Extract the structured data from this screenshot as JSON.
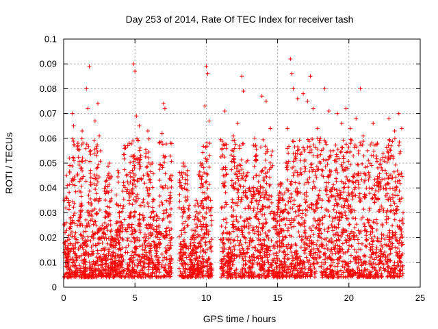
{
  "chart_data": {
    "type": "scatter",
    "title": "Day 253 of 2014, Rate Of TEC Index for receiver tash",
    "xlabel": "GPS time / hours",
    "ylabel": "ROTI / TECUs",
    "xlim": [
      0,
      25
    ],
    "ylim": [
      0,
      0.1
    ],
    "xticks": [
      0,
      5,
      10,
      15,
      20,
      25
    ],
    "xtick_labels": [
      "0",
      "5",
      "10",
      "15",
      "20",
      "25"
    ],
    "yticks": [
      0,
      0.01,
      0.02,
      0.03,
      0.04,
      0.05,
      0.06,
      0.07,
      0.08,
      0.09,
      0.1
    ],
    "ytick_labels": [
      "0",
      "0.01",
      "0.02",
      "0.03",
      "0.04",
      "0.05",
      "0.06",
      "0.07",
      "0.08",
      "0.09",
      "0.1"
    ],
    "grid": true,
    "marker": "plus",
    "color": "#ff0000",
    "data_gaps_hours": [
      [
        7.6,
        8.1
      ],
      [
        10.4,
        11.0
      ]
    ],
    "series": [
      {
        "points": [
          [
            0.05,
            0.035
          ],
          [
            0.1,
            0.022
          ],
          [
            0.2,
            0.045
          ],
          [
            0.3,
            0.015
          ],
          [
            0.4,
            0.052
          ],
          [
            0.5,
            0.028
          ],
          [
            0.6,
            0.07
          ],
          [
            0.7,
            0.065
          ],
          [
            0.8,
            0.041
          ],
          [
            0.9,
            0.012
          ],
          [
            1.0,
            0.058
          ],
          [
            1.2,
            0.048
          ],
          [
            1.3,
            0.063
          ],
          [
            1.5,
            0.019
          ],
          [
            1.6,
            0.08
          ],
          [
            1.7,
            0.072
          ],
          [
            1.8,
            0.089
          ],
          [
            1.9,
            0.055
          ],
          [
            2.0,
            0.031
          ],
          [
            2.2,
            0.067
          ],
          [
            2.4,
            0.074
          ],
          [
            2.5,
            0.061
          ],
          [
            2.7,
            0.025
          ],
          [
            3.0,
            0.043
          ],
          [
            3.2,
            0.05
          ],
          [
            3.5,
            0.017
          ],
          [
            3.8,
            0.047
          ],
          [
            4.0,
            0.033
          ],
          [
            4.3,
            0.057
          ],
          [
            4.6,
            0.058
          ],
          [
            4.9,
            0.09
          ],
          [
            5.0,
            0.087
          ],
          [
            5.1,
            0.069
          ],
          [
            5.3,
            0.065
          ],
          [
            5.6,
            0.045
          ],
          [
            5.9,
            0.063
          ],
          [
            6.2,
            0.05
          ],
          [
            6.5,
            0.029
          ],
          [
            6.9,
            0.062
          ],
          [
            7.0,
            0.074
          ],
          [
            7.1,
            0.072
          ],
          [
            7.3,
            0.04
          ],
          [
            7.5,
            0.058
          ],
          [
            8.4,
            0.05
          ],
          [
            8.7,
            0.047
          ],
          [
            9.0,
            0.023
          ],
          [
            9.3,
            0.035
          ],
          [
            9.6,
            0.05
          ],
          [
            9.9,
            0.073
          ],
          [
            10.0,
            0.089
          ],
          [
            10.1,
            0.086
          ],
          [
            10.2,
            0.067
          ],
          [
            10.3,
            0.035
          ],
          [
            11.3,
            0.071
          ],
          [
            11.6,
            0.022
          ],
          [
            11.9,
            0.061
          ],
          [
            12.2,
            0.066
          ],
          [
            12.5,
            0.085
          ],
          [
            12.6,
            0.079
          ],
          [
            12.9,
            0.051
          ],
          [
            13.2,
            0.04
          ],
          [
            13.4,
            0.06
          ],
          [
            13.7,
            0.045
          ],
          [
            13.9,
            0.077
          ],
          [
            14.2,
            0.075
          ],
          [
            14.5,
            0.064
          ],
          [
            14.8,
            0.03
          ],
          [
            15.2,
            0.042
          ],
          [
            15.5,
            0.038
          ],
          [
            15.7,
            0.064
          ],
          [
            15.9,
            0.092
          ],
          [
            16.0,
            0.086
          ],
          [
            16.1,
            0.08
          ],
          [
            16.4,
            0.076
          ],
          [
            16.8,
            0.078
          ],
          [
            17.1,
            0.075
          ],
          [
            17.3,
            0.085
          ],
          [
            17.5,
            0.072
          ],
          [
            17.8,
            0.064
          ],
          [
            18.0,
            0.06
          ],
          [
            18.3,
            0.08
          ],
          [
            18.6,
            0.071
          ],
          [
            18.9,
            0.055
          ],
          [
            19.2,
            0.07
          ],
          [
            19.5,
            0.066
          ],
          [
            19.8,
            0.072
          ],
          [
            20.1,
            0.064
          ],
          [
            20.5,
            0.068
          ],
          [
            20.8,
            0.08
          ],
          [
            21.0,
            0.061
          ],
          [
            21.3,
            0.055
          ],
          [
            21.7,
            0.066
          ],
          [
            22.0,
            0.058
          ],
          [
            22.4,
            0.054
          ],
          [
            22.8,
            0.068
          ],
          [
            23.2,
            0.063
          ],
          [
            23.5,
            0.07
          ],
          [
            23.7,
            0.064
          ],
          [
            23.8,
            0.03
          ]
        ]
      }
    ]
  }
}
